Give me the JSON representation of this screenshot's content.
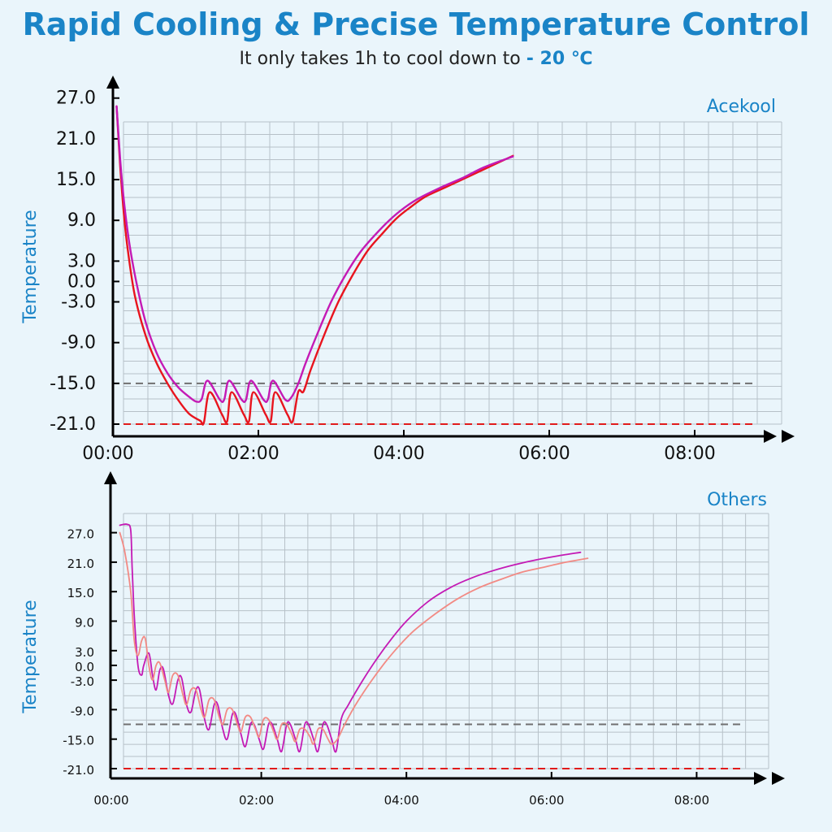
{
  "header": {
    "title": "Rapid Cooling & Precise Temperature Control",
    "subtitle_prefix": "It only takes 1h to cool down to",
    "subtitle_highlight": "- 20 ℃"
  },
  "colors": {
    "accent": "#1a84c7",
    "background": "#eaf5fb",
    "grid": "#b7c1c8",
    "ref_gray": "#707070",
    "ref_red": "#e11b1b",
    "series_red": "#e8141e",
    "series_magenta": "#c41ab5",
    "series_salmon": "#f28a84"
  },
  "chart_data": [
    {
      "type": "line",
      "title": "Acekool",
      "ylabel": "Temperature",
      "xlabel": "",
      "x_unit": "hours",
      "x_ticks": [
        0,
        2,
        4,
        6,
        8
      ],
      "x_tick_labels": [
        "00:00",
        "02:00",
        "04:00",
        "06:00",
        "08:00"
      ],
      "y_ticks": [
        27,
        21,
        15,
        9,
        3,
        0,
        -3,
        -9,
        -15,
        -21
      ],
      "y_tick_labels": [
        "27.0",
        "21.0",
        "15.0",
        "9.0",
        "3.0",
        "0.0",
        "-3.0",
        "-9.0",
        "-15.0",
        "-21.0"
      ],
      "xlim": [
        0,
        9.2
      ],
      "ylim": [
        -22.5,
        28
      ],
      "grid": true,
      "reference_lines": [
        {
          "y": -15,
          "color": "#707070",
          "style": "dashed"
        },
        {
          "y": -21,
          "color": "#e11b1b",
          "style": "dashed"
        }
      ],
      "series": [
        {
          "color": "#e8141e",
          "points": [
            [
              0.05,
              25.8
            ],
            [
              0.1,
              17
            ],
            [
              0.15,
              10
            ],
            [
              0.2,
              5
            ],
            [
              0.3,
              -2
            ],
            [
              0.45,
              -8
            ],
            [
              0.6,
              -12
            ],
            [
              0.75,
              -15
            ],
            [
              0.9,
              -17.5
            ],
            [
              1.05,
              -19.5
            ],
            [
              1.2,
              -20.5
            ],
            [
              1.25,
              -20.8
            ],
            [
              1.33,
              -16.3
            ],
            [
              1.5,
              -19.6
            ],
            [
              1.57,
              -20.6
            ],
            [
              1.63,
              -16.3
            ],
            [
              1.8,
              -19.6
            ],
            [
              1.87,
              -20.6
            ],
            [
              1.93,
              -16.3
            ],
            [
              2.1,
              -19.6
            ],
            [
              2.17,
              -20.6
            ],
            [
              2.23,
              -16.3
            ],
            [
              2.4,
              -19.6
            ],
            [
              2.47,
              -20.6
            ],
            [
              2.55,
              -16.2
            ],
            [
              2.62,
              -16.2
            ],
            [
              2.72,
              -13
            ],
            [
              2.9,
              -8
            ],
            [
              3.1,
              -3
            ],
            [
              3.3,
              1
            ],
            [
              3.5,
              4.5
            ],
            [
              3.7,
              7
            ],
            [
              3.9,
              9.3
            ],
            [
              4.1,
              11
            ],
            [
              4.3,
              12.5
            ],
            [
              4.6,
              14
            ],
            [
              4.9,
              15.5
            ],
            [
              5.2,
              17
            ],
            [
              5.5,
              18.5
            ]
          ]
        },
        {
          "color": "#c41ab5",
          "points": [
            [
              0.05,
              25.8
            ],
            [
              0.1,
              18
            ],
            [
              0.15,
              12
            ],
            [
              0.22,
              6
            ],
            [
              0.32,
              0
            ],
            [
              0.45,
              -6
            ],
            [
              0.6,
              -10.5
            ],
            [
              0.75,
              -13.5
            ],
            [
              0.9,
              -15.6
            ],
            [
              1.05,
              -17
            ],
            [
              1.15,
              -17.7
            ],
            [
              1.22,
              -17.3
            ],
            [
              1.3,
              -14.6
            ],
            [
              1.47,
              -17.4
            ],
            [
              1.53,
              -17.4
            ],
            [
              1.6,
              -14.6
            ],
            [
              1.77,
              -17.4
            ],
            [
              1.83,
              -17.4
            ],
            [
              1.9,
              -14.6
            ],
            [
              2.07,
              -17.4
            ],
            [
              2.13,
              -17.4
            ],
            [
              2.2,
              -14.6
            ],
            [
              2.37,
              -17.4
            ],
            [
              2.45,
              -17.1
            ],
            [
              2.55,
              -15
            ],
            [
              2.65,
              -12
            ],
            [
              2.8,
              -8
            ],
            [
              3.0,
              -3
            ],
            [
              3.2,
              1
            ],
            [
              3.4,
              4.3
            ],
            [
              3.6,
              6.8
            ],
            [
              3.8,
              9
            ],
            [
              4.0,
              10.8
            ],
            [
              4.2,
              12.2
            ],
            [
              4.5,
              13.8
            ],
            [
              4.8,
              15.2
            ],
            [
              5.1,
              16.8
            ],
            [
              5.5,
              18.4
            ]
          ]
        }
      ]
    },
    {
      "type": "line",
      "title": "Others",
      "ylabel": "Temperature",
      "xlabel": "",
      "x_unit": "hours",
      "x_ticks": [
        0,
        2,
        4,
        6,
        8
      ],
      "x_tick_labels": [
        "00:00",
        "02:00",
        "04:00",
        "06:00",
        "08:00"
      ],
      "y_ticks": [
        27,
        21,
        15,
        9,
        3,
        0,
        -3,
        -9,
        -15,
        -21
      ],
      "y_tick_labels": [
        "27.0",
        "21.0",
        "15.0",
        "9.0",
        "3.0",
        "0.0",
        "-3.0",
        "-9.0",
        "-15.0",
        "-21.0"
      ],
      "xlim": [
        0,
        9.2
      ],
      "ylim": [
        -22.5,
        32
      ],
      "grid": true,
      "reference_lines": [
        {
          "y": -12,
          "color": "#707070",
          "style": "dashed"
        },
        {
          "y": -21,
          "color": "#e11b1b",
          "style": "dashed"
        }
      ],
      "series": [
        {
          "color": "#c41ab5",
          "points": [
            [
              0.05,
              28.5
            ],
            [
              0.15,
              28.7
            ],
            [
              0.2,
              27.5
            ],
            [
              0.22,
              20
            ],
            [
              0.25,
              10
            ],
            [
              0.3,
              0
            ],
            [
              0.35,
              -2
            ],
            [
              0.38,
              0
            ],
            [
              0.45,
              2.5
            ],
            [
              0.5,
              -2
            ],
            [
              0.55,
              -5
            ],
            [
              0.6,
              -1
            ],
            [
              0.65,
              -0.7
            ],
            [
              0.72,
              -6
            ],
            [
              0.78,
              -7.8
            ],
            [
              0.85,
              -3
            ],
            [
              0.9,
              -2.5
            ],
            [
              0.97,
              -8
            ],
            [
              1.03,
              -9.5
            ],
            [
              1.1,
              -5
            ],
            [
              1.15,
              -5
            ],
            [
              1.22,
              -11
            ],
            [
              1.28,
              -13
            ],
            [
              1.35,
              -8
            ],
            [
              1.4,
              -8
            ],
            [
              1.47,
              -13
            ],
            [
              1.53,
              -15
            ],
            [
              1.6,
              -10
            ],
            [
              1.65,
              -10
            ],
            [
              1.72,
              -14
            ],
            [
              1.78,
              -16.5
            ],
            [
              1.85,
              -12
            ],
            [
              1.9,
              -12
            ],
            [
              1.97,
              -15
            ],
            [
              2.03,
              -17
            ],
            [
              2.1,
              -12
            ],
            [
              2.15,
              -12
            ],
            [
              2.22,
              -15
            ],
            [
              2.28,
              -17.5
            ],
            [
              2.35,
              -12
            ],
            [
              2.4,
              -12
            ],
            [
              2.47,
              -15
            ],
            [
              2.53,
              -17.5
            ],
            [
              2.6,
              -12
            ],
            [
              2.65,
              -12
            ],
            [
              2.72,
              -15
            ],
            [
              2.78,
              -17.5
            ],
            [
              2.85,
              -12
            ],
            [
              2.9,
              -12
            ],
            [
              2.97,
              -15
            ],
            [
              3.03,
              -17.5
            ],
            [
              3.1,
              -11
            ],
            [
              3.2,
              -8
            ],
            [
              3.4,
              -3
            ],
            [
              3.6,
              1.5
            ],
            [
              3.8,
              5.5
            ],
            [
              4.0,
              9
            ],
            [
              4.3,
              13
            ],
            [
              4.6,
              15.8
            ],
            [
              4.9,
              17.8
            ],
            [
              5.2,
              19.3
            ],
            [
              5.5,
              20.5
            ],
            [
              5.8,
              21.5
            ],
            [
              6.1,
              22.3
            ],
            [
              6.4,
              23
            ]
          ]
        },
        {
          "color": "#f28a84",
          "points": [
            [
              0.05,
              27
            ],
            [
              0.12,
              23
            ],
            [
              0.2,
              15
            ],
            [
              0.25,
              5
            ],
            [
              0.3,
              2
            ],
            [
              0.35,
              5
            ],
            [
              0.4,
              5.5
            ],
            [
              0.45,
              0
            ],
            [
              0.5,
              -3
            ],
            [
              0.55,
              0
            ],
            [
              0.6,
              0.5
            ],
            [
              0.67,
              -3
            ],
            [
              0.72,
              -5.5
            ],
            [
              0.78,
              -2
            ],
            [
              0.85,
              -2
            ],
            [
              0.92,
              -6
            ],
            [
              0.97,
              -8
            ],
            [
              1.03,
              -5
            ],
            [
              1.1,
              -5
            ],
            [
              1.17,
              -9
            ],
            [
              1.22,
              -10.5
            ],
            [
              1.28,
              -7
            ],
            [
              1.35,
              -7
            ],
            [
              1.42,
              -10.5
            ],
            [
              1.47,
              -12
            ],
            [
              1.53,
              -9
            ],
            [
              1.6,
              -9
            ],
            [
              1.67,
              -12
            ],
            [
              1.72,
              -13.5
            ],
            [
              1.78,
              -10.5
            ],
            [
              1.85,
              -10.5
            ],
            [
              1.92,
              -13
            ],
            [
              1.97,
              -14.5
            ],
            [
              2.03,
              -11
            ],
            [
              2.1,
              -11
            ],
            [
              2.17,
              -13.5
            ],
            [
              2.22,
              -15
            ],
            [
              2.28,
              -12
            ],
            [
              2.35,
              -12
            ],
            [
              2.42,
              -14
            ],
            [
              2.47,
              -15.5
            ],
            [
              2.53,
              -13
            ],
            [
              2.6,
              -13
            ],
            [
              2.67,
              -14.5
            ],
            [
              2.72,
              -16
            ],
            [
              2.78,
              -13
            ],
            [
              2.85,
              -13
            ],
            [
              2.92,
              -15
            ],
            [
              2.97,
              -16
            ],
            [
              3.05,
              -15
            ],
            [
              3.15,
              -12
            ],
            [
              3.3,
              -8
            ],
            [
              3.5,
              -3.5
            ],
            [
              3.7,
              0.5
            ],
            [
              3.9,
              4
            ],
            [
              4.1,
              7
            ],
            [
              4.4,
              10.5
            ],
            [
              4.7,
              13.5
            ],
            [
              5.0,
              15.8
            ],
            [
              5.3,
              17.5
            ],
            [
              5.6,
              19
            ],
            [
              5.9,
              20
            ],
            [
              6.2,
              21
            ],
            [
              6.5,
              21.8
            ]
          ]
        }
      ]
    }
  ]
}
